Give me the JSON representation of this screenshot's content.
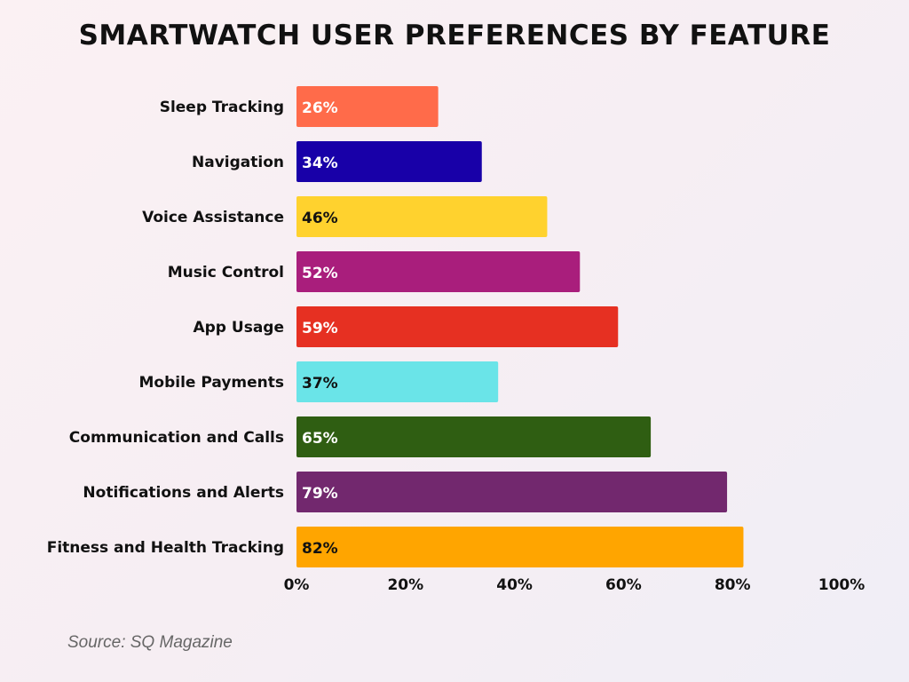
{
  "chart_data": {
    "type": "bar",
    "orientation": "horizontal",
    "title": "SMARTWATCH USER PREFERENCES BY FEATURE",
    "categories": [
      "Sleep Tracking",
      "Navigation",
      "Voice Assistance",
      "Music Control",
      "App Usage",
      "Mobile Payments",
      "Communication and Calls",
      "Notifications and Alerts",
      "Fitness and Health Tracking"
    ],
    "values": [
      26,
      34,
      46,
      52,
      59,
      37,
      65,
      79,
      82
    ],
    "data_labels": [
      "26%",
      "34%",
      "46%",
      "52%",
      "59%",
      "37%",
      "65%",
      "79%",
      "82%"
    ],
    "colors": [
      "#FF6B4A",
      "#1800A8",
      "#FFD22E",
      "#A91E7C",
      "#E63022",
      "#6AE4E8",
      "#2F5E12",
      "#72286E",
      "#FFA500"
    ],
    "label_colors": [
      "#ffffff",
      "#ffffff",
      "#111111",
      "#ffffff",
      "#ffffff",
      "#111111",
      "#ffffff",
      "#ffffff",
      "#111111"
    ],
    "xlim": [
      0,
      100
    ],
    "x_ticks": [
      "0%",
      "20%",
      "40%",
      "60%",
      "80%",
      "100%"
    ],
    "grid": false,
    "source": "Source: SQ Magazine"
  }
}
